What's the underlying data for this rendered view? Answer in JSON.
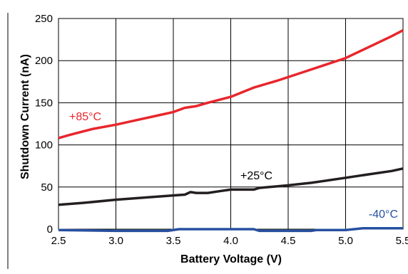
{
  "chart_data": {
    "type": "line",
    "xlabel": "Battery Voltage (V)",
    "ylabel": "Shutdown Current (nA)",
    "xlim": [
      2.5,
      5.5
    ],
    "ylim": [
      0,
      250
    ],
    "x_ticks": [
      "2.5",
      "3.0",
      "3.5",
      "4.0",
      "4.5",
      "5.0",
      "5.5"
    ],
    "x_tick_values": [
      2.5,
      3.0,
      3.5,
      4.0,
      4.5,
      5.0,
      5.5
    ],
    "y_ticks": [
      "0",
      "50",
      "100",
      "150",
      "200",
      "250"
    ],
    "y_tick_values": [
      0,
      50,
      100,
      150,
      200,
      250
    ],
    "grid": true,
    "series": [
      {
        "name": "+85°C",
        "color": "#e8262c",
        "x": [
          2.5,
          2.6,
          2.8,
          3.0,
          3.2,
          3.4,
          3.5,
          3.6,
          3.7,
          3.8,
          4.0,
          4.2,
          4.4,
          4.6,
          4.8,
          5.0,
          5.2,
          5.4,
          5.5
        ],
        "y": [
          108,
          112,
          119,
          124,
          130,
          136,
          139,
          144,
          146,
          150,
          157,
          168,
          176,
          185,
          194,
          203,
          216,
          229,
          236
        ]
      },
      {
        "name": "+25°C",
        "color": "#231f20",
        "x": [
          2.5,
          2.7,
          3.0,
          3.3,
          3.5,
          3.6,
          3.65,
          3.7,
          3.8,
          3.9,
          4.0,
          4.1,
          4.2,
          4.25,
          4.5,
          4.7,
          5.0,
          5.2,
          5.4,
          5.5
        ],
        "y": [
          29,
          31,
          35,
          38,
          40,
          41,
          44,
          43,
          43,
          45,
          47,
          47,
          47,
          49,
          52,
          55,
          61,
          65,
          69,
          72
        ]
      },
      {
        "name": "-40°C",
        "color": "#2750a0",
        "x": [
          2.5,
          3.0,
          3.45,
          3.55,
          4.2,
          4.25,
          4.7,
          4.75,
          5.0,
          5.15,
          5.5
        ],
        "y": [
          -1,
          -2,
          -2,
          0,
          0,
          -2,
          -2,
          -1,
          -1,
          1,
          1
        ]
      }
    ]
  }
}
